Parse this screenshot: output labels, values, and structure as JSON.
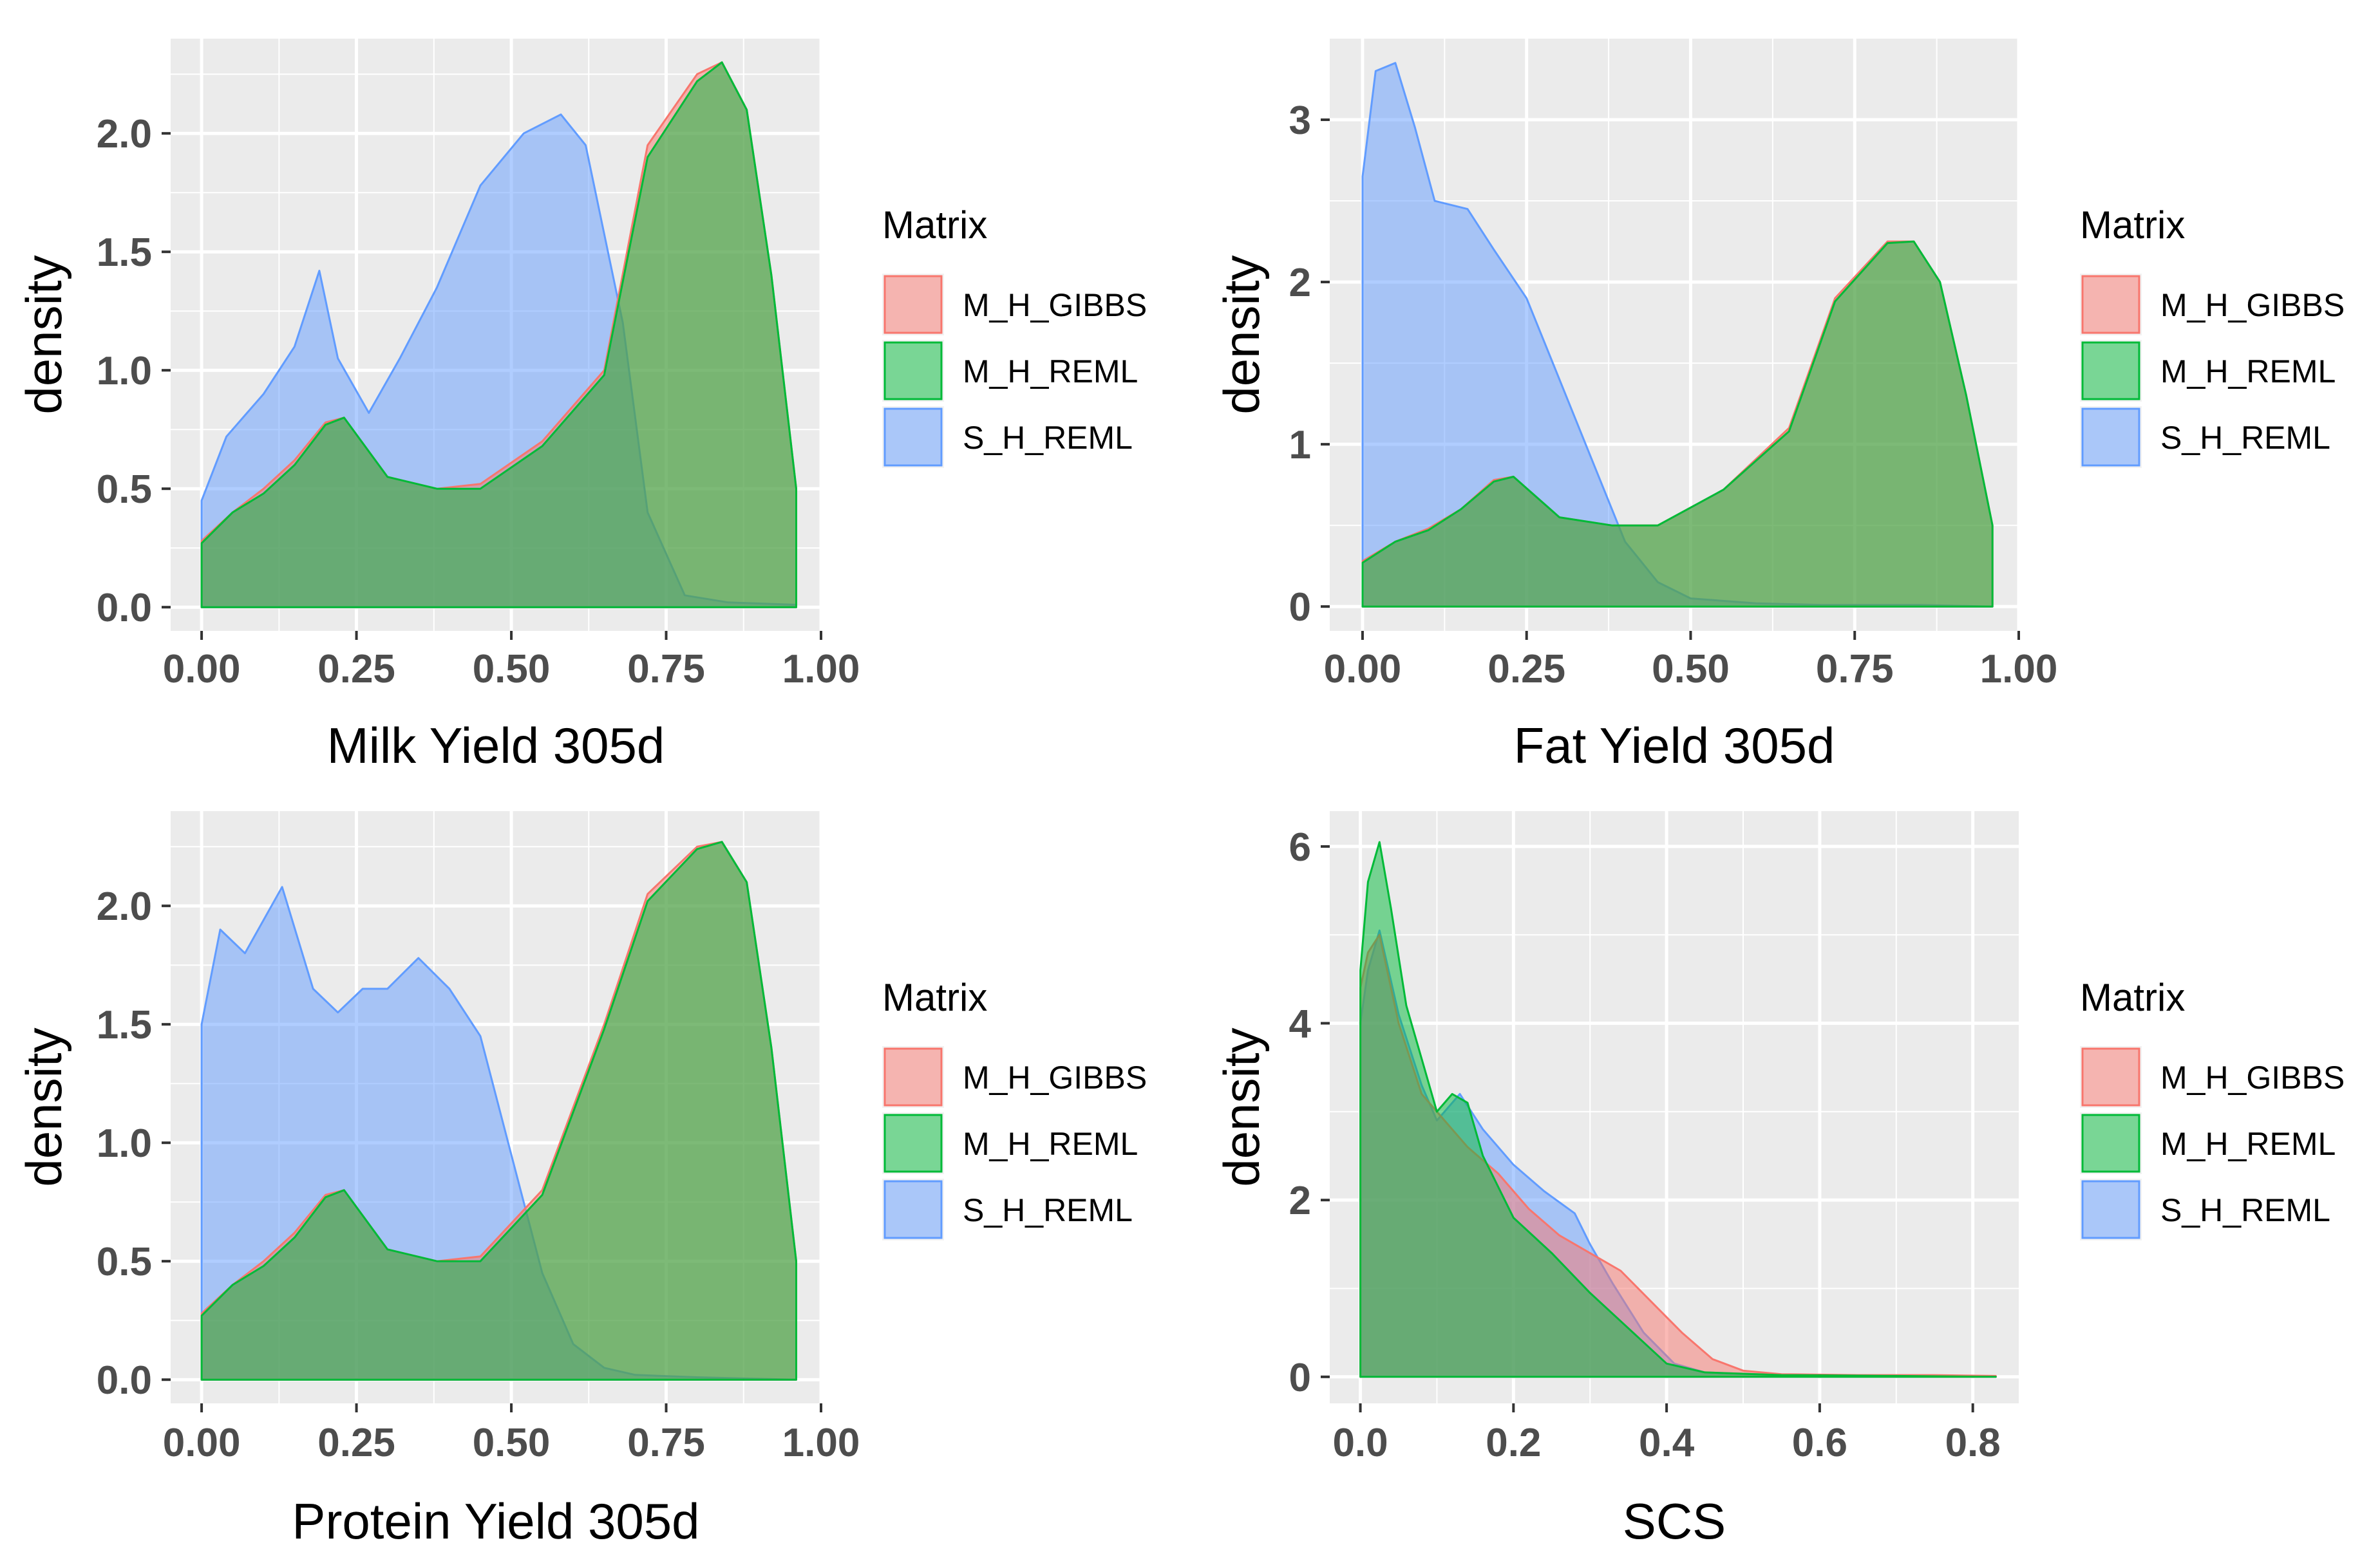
{
  "legend": {
    "title": "Matrix",
    "entries": [
      "M_H_GIBBS",
      "M_H_REML",
      "S_H_REML"
    ]
  },
  "colors": {
    "M_H_GIBBS": "#F8766D",
    "M_H_REML": "#00BA38",
    "S_H_REML": "#619CFF",
    "panel_bg": "#EBEBEB",
    "grid": "#FFFFFF"
  },
  "chart_data": [
    {
      "type": "area",
      "title": "",
      "xlabel": "Milk Yield 305d",
      "ylabel": "density",
      "xlim": [
        -0.05,
        1.0
      ],
      "ylim": [
        -0.1,
        2.4
      ],
      "xticks": [
        0.0,
        0.25,
        0.5,
        0.75,
        1.0
      ],
      "xtick_labels": [
        "0.00",
        "0.25",
        "0.50",
        "0.75",
        "1.00"
      ],
      "yticks": [
        0.0,
        0.5,
        1.0,
        1.5,
        2.0
      ],
      "ytick_labels": [
        "0.0",
        "0.5",
        "1.0",
        "1.5",
        "2.0"
      ],
      "series": [
        {
          "name": "M_H_GIBBS",
          "x": [
            0,
            0.05,
            0.1,
            0.15,
            0.2,
            0.23,
            0.3,
            0.38,
            0.45,
            0.55,
            0.65,
            0.72,
            0.8,
            0.84,
            0.88,
            0.92,
            0.96
          ],
          "values": [
            0.28,
            0.4,
            0.5,
            0.62,
            0.78,
            0.8,
            0.55,
            0.5,
            0.52,
            0.7,
            1.0,
            1.95,
            2.25,
            2.3,
            2.1,
            1.4,
            0.5
          ]
        },
        {
          "name": "M_H_REML",
          "x": [
            0,
            0.05,
            0.1,
            0.15,
            0.2,
            0.23,
            0.3,
            0.38,
            0.45,
            0.55,
            0.65,
            0.72,
            0.8,
            0.84,
            0.88,
            0.92,
            0.96
          ],
          "values": [
            0.27,
            0.4,
            0.48,
            0.6,
            0.77,
            0.8,
            0.55,
            0.5,
            0.5,
            0.68,
            0.98,
            1.9,
            2.22,
            2.3,
            2.1,
            1.4,
            0.5
          ]
        },
        {
          "name": "S_H_REML",
          "x": [
            0,
            0.04,
            0.1,
            0.15,
            0.19,
            0.22,
            0.27,
            0.32,
            0.38,
            0.45,
            0.52,
            0.58,
            0.62,
            0.68,
            0.72,
            0.78,
            0.85,
            0.96
          ],
          "values": [
            0.45,
            0.72,
            0.9,
            1.1,
            1.42,
            1.05,
            0.82,
            1.05,
            1.35,
            1.78,
            2.0,
            2.08,
            1.95,
            1.2,
            0.4,
            0.05,
            0.02,
            0.01
          ]
        }
      ]
    },
    {
      "type": "area",
      "title": "",
      "xlabel": "Fat Yield 305d",
      "ylabel": "density",
      "xlim": [
        -0.05,
        1.0
      ],
      "ylim": [
        -0.15,
        3.5
      ],
      "xticks": [
        0.0,
        0.25,
        0.5,
        0.75,
        1.0
      ],
      "xtick_labels": [
        "0.00",
        "0.25",
        "0.50",
        "0.75",
        "1.00"
      ],
      "yticks": [
        0,
        1,
        2,
        3
      ],
      "ytick_labels": [
        "0",
        "1",
        "2",
        "3"
      ],
      "series": [
        {
          "name": "M_H_GIBBS",
          "x": [
            0,
            0.05,
            0.1,
            0.15,
            0.2,
            0.23,
            0.3,
            0.38,
            0.45,
            0.55,
            0.65,
            0.72,
            0.8,
            0.84,
            0.88,
            0.92,
            0.96
          ],
          "values": [
            0.28,
            0.4,
            0.48,
            0.6,
            0.78,
            0.8,
            0.55,
            0.5,
            0.5,
            0.72,
            1.1,
            1.9,
            2.25,
            2.25,
            2.0,
            1.3,
            0.5
          ]
        },
        {
          "name": "M_H_REML",
          "x": [
            0,
            0.05,
            0.1,
            0.15,
            0.2,
            0.23,
            0.3,
            0.38,
            0.45,
            0.55,
            0.65,
            0.72,
            0.8,
            0.84,
            0.88,
            0.92,
            0.96
          ],
          "values": [
            0.27,
            0.4,
            0.47,
            0.6,
            0.77,
            0.8,
            0.55,
            0.5,
            0.5,
            0.72,
            1.08,
            1.88,
            2.24,
            2.25,
            2.0,
            1.3,
            0.5
          ]
        },
        {
          "name": "S_H_REML",
          "x": [
            0,
            0.02,
            0.05,
            0.08,
            0.11,
            0.16,
            0.2,
            0.25,
            0.3,
            0.35,
            0.4,
            0.45,
            0.5,
            0.6,
            0.7,
            0.85,
            0.96
          ],
          "values": [
            2.65,
            3.3,
            3.35,
            2.95,
            2.5,
            2.45,
            2.2,
            1.9,
            1.4,
            0.9,
            0.4,
            0.15,
            0.05,
            0.02,
            0.01,
            0.01,
            0.0
          ]
        }
      ]
    },
    {
      "type": "area",
      "title": "",
      "xlabel": "Protein Yield 305d",
      "ylabel": "density",
      "xlim": [
        -0.05,
        1.0
      ],
      "ylim": [
        -0.1,
        2.4
      ],
      "xticks": [
        0.0,
        0.25,
        0.5,
        0.75,
        1.0
      ],
      "xtick_labels": [
        "0.00",
        "0.25",
        "0.50",
        "0.75",
        "1.00"
      ],
      "yticks": [
        0.0,
        0.5,
        1.0,
        1.5,
        2.0
      ],
      "ytick_labels": [
        "0.0",
        "0.5",
        "1.0",
        "1.5",
        "2.0"
      ],
      "series": [
        {
          "name": "M_H_GIBBS",
          "x": [
            0,
            0.05,
            0.1,
            0.15,
            0.2,
            0.23,
            0.3,
            0.38,
            0.45,
            0.55,
            0.65,
            0.72,
            0.8,
            0.84,
            0.88,
            0.92,
            0.96
          ],
          "values": [
            0.28,
            0.4,
            0.5,
            0.62,
            0.78,
            0.8,
            0.55,
            0.5,
            0.52,
            0.8,
            1.5,
            2.05,
            2.25,
            2.27,
            2.1,
            1.4,
            0.5
          ]
        },
        {
          "name": "M_H_REML",
          "x": [
            0,
            0.05,
            0.1,
            0.15,
            0.2,
            0.23,
            0.3,
            0.38,
            0.45,
            0.55,
            0.65,
            0.72,
            0.8,
            0.84,
            0.88,
            0.92,
            0.96
          ],
          "values": [
            0.27,
            0.4,
            0.48,
            0.6,
            0.77,
            0.8,
            0.55,
            0.5,
            0.5,
            0.78,
            1.48,
            2.02,
            2.24,
            2.27,
            2.1,
            1.4,
            0.5
          ]
        },
        {
          "name": "S_H_REML",
          "x": [
            0,
            0.03,
            0.07,
            0.13,
            0.18,
            0.22,
            0.26,
            0.3,
            0.35,
            0.4,
            0.45,
            0.5,
            0.55,
            0.6,
            0.65,
            0.7,
            0.8,
            0.96
          ],
          "values": [
            1.5,
            1.9,
            1.8,
            2.08,
            1.65,
            1.55,
            1.65,
            1.65,
            1.78,
            1.65,
            1.45,
            0.95,
            0.45,
            0.15,
            0.05,
            0.02,
            0.01,
            0.0
          ]
        }
      ]
    },
    {
      "type": "area",
      "title": "",
      "xlabel": "SCS",
      "ylabel": "density",
      "xlim": [
        -0.04,
        0.86
      ],
      "ylim": [
        -0.3,
        6.4
      ],
      "xticks": [
        0.0,
        0.2,
        0.4,
        0.6,
        0.8
      ],
      "xtick_labels": [
        "0.0",
        "0.2",
        "0.4",
        "0.6",
        "0.8"
      ],
      "yticks": [
        0,
        2,
        4,
        6
      ],
      "ytick_labels": [
        "0",
        "2",
        "4",
        "6"
      ],
      "series": [
        {
          "name": "M_H_GIBBS",
          "x": [
            0,
            0.01,
            0.025,
            0.05,
            0.08,
            0.11,
            0.14,
            0.18,
            0.22,
            0.26,
            0.3,
            0.34,
            0.38,
            0.42,
            0.46,
            0.5,
            0.55,
            0.65,
            0.75,
            0.83
          ],
          "values": [
            4.4,
            4.8,
            5.0,
            4.0,
            3.2,
            2.9,
            2.6,
            2.3,
            1.9,
            1.6,
            1.4,
            1.2,
            0.85,
            0.5,
            0.2,
            0.07,
            0.03,
            0.02,
            0.02,
            0.01
          ]
        },
        {
          "name": "M_H_REML",
          "x": [
            0,
            0.01,
            0.025,
            0.04,
            0.06,
            0.08,
            0.1,
            0.12,
            0.14,
            0.16,
            0.2,
            0.25,
            0.3,
            0.35,
            0.4,
            0.45,
            0.55,
            0.7,
            0.83
          ],
          "values": [
            4.6,
            5.6,
            6.05,
            5.3,
            4.2,
            3.6,
            3.0,
            3.2,
            3.1,
            2.5,
            1.8,
            1.4,
            0.95,
            0.55,
            0.15,
            0.05,
            0.02,
            0.01,
            0.0
          ]
        },
        {
          "name": "S_H_REML",
          "x": [
            0,
            0.01,
            0.025,
            0.05,
            0.08,
            0.1,
            0.13,
            0.16,
            0.2,
            0.24,
            0.28,
            0.3,
            0.33,
            0.37,
            0.41,
            0.45,
            0.55,
            0.7,
            0.83
          ],
          "values": [
            4.0,
            4.6,
            5.05,
            4.1,
            3.3,
            2.9,
            3.2,
            2.8,
            2.4,
            2.1,
            1.85,
            1.5,
            1.05,
            0.5,
            0.15,
            0.05,
            0.02,
            0.01,
            0.0
          ]
        }
      ]
    }
  ]
}
